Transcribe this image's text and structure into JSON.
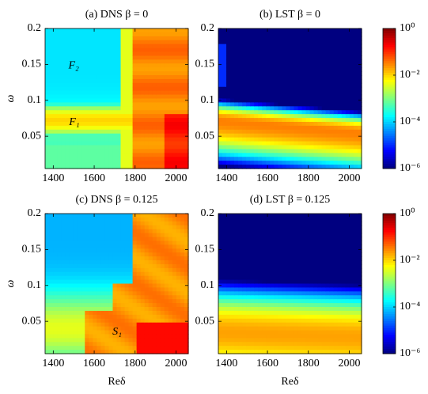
{
  "chart_data": [
    {
      "type": "contour",
      "title": "(a) DNS β = 0",
      "ylabel": "ω",
      "xlim": [
        1360,
        2060
      ],
      "ylim": [
        0.005,
        0.2
      ],
      "xticks": [
        1400,
        1600,
        1800,
        2000
      ],
      "yticks": [
        0.05,
        0.1,
        0.15,
        0.2
      ],
      "colormap": "jet",
      "annotations": [
        {
          "text": "F₂",
          "x": 1500,
          "y": 0.148
        },
        {
          "text": "F₁",
          "x": 1503,
          "y": 0.069
        }
      ]
    },
    {
      "type": "contour",
      "title": "(b) LST β = 0",
      "xlim": [
        1360,
        2060
      ],
      "ylim": [
        0.005,
        0.2
      ],
      "xticks": [
        1400,
        1600,
        1800,
        2000
      ],
      "yticks": [
        0.05,
        0.1,
        0.15,
        0.2
      ],
      "colormap": "jet",
      "colorbar": {
        "scale": "log",
        "ylim": [
          1e-06,
          1
        ],
        "yticks": [
          {
            "value": 1,
            "label": "10⁰"
          },
          {
            "value": 0.01,
            "label": "10⁻²"
          },
          {
            "value": 0.0001,
            "label": "10⁻⁴"
          },
          {
            "value": 1e-06,
            "label": "10⁻⁶"
          }
        ]
      }
    },
    {
      "type": "contour",
      "title": "(c) DNS β = 0.125",
      "ylabel": "ω",
      "xlabel": "Reδ",
      "xlim": [
        1360,
        2060
      ],
      "ylim": [
        0.005,
        0.2
      ],
      "xticks": [
        1400,
        1600,
        1800,
        2000
      ],
      "yticks": [
        0.05,
        0.1,
        0.15,
        0.2
      ],
      "colormap": "jet",
      "annotations": [
        {
          "text": "S₁",
          "x": 1712,
          "y": 0.035
        }
      ]
    },
    {
      "type": "contour",
      "title": "(d) LST β = 0.125",
      "xlabel": "Reδ",
      "xlim": [
        1360,
        2060
      ],
      "ylim": [
        0.005,
        0.2
      ],
      "xticks": [
        1400,
        1600,
        1800,
        2000
      ],
      "yticks": [
        0.05,
        0.1,
        0.15,
        0.2
      ],
      "colormap": "jet",
      "colorbar": {
        "scale": "log",
        "ylim": [
          1e-06,
          1
        ],
        "yticks": [
          {
            "value": 1,
            "label": "10⁰"
          },
          {
            "value": 0.01,
            "label": "10⁻²"
          },
          {
            "value": 0.0001,
            "label": "10⁻⁴"
          },
          {
            "value": 1e-06,
            "label": "10⁻⁶"
          }
        ]
      }
    }
  ]
}
